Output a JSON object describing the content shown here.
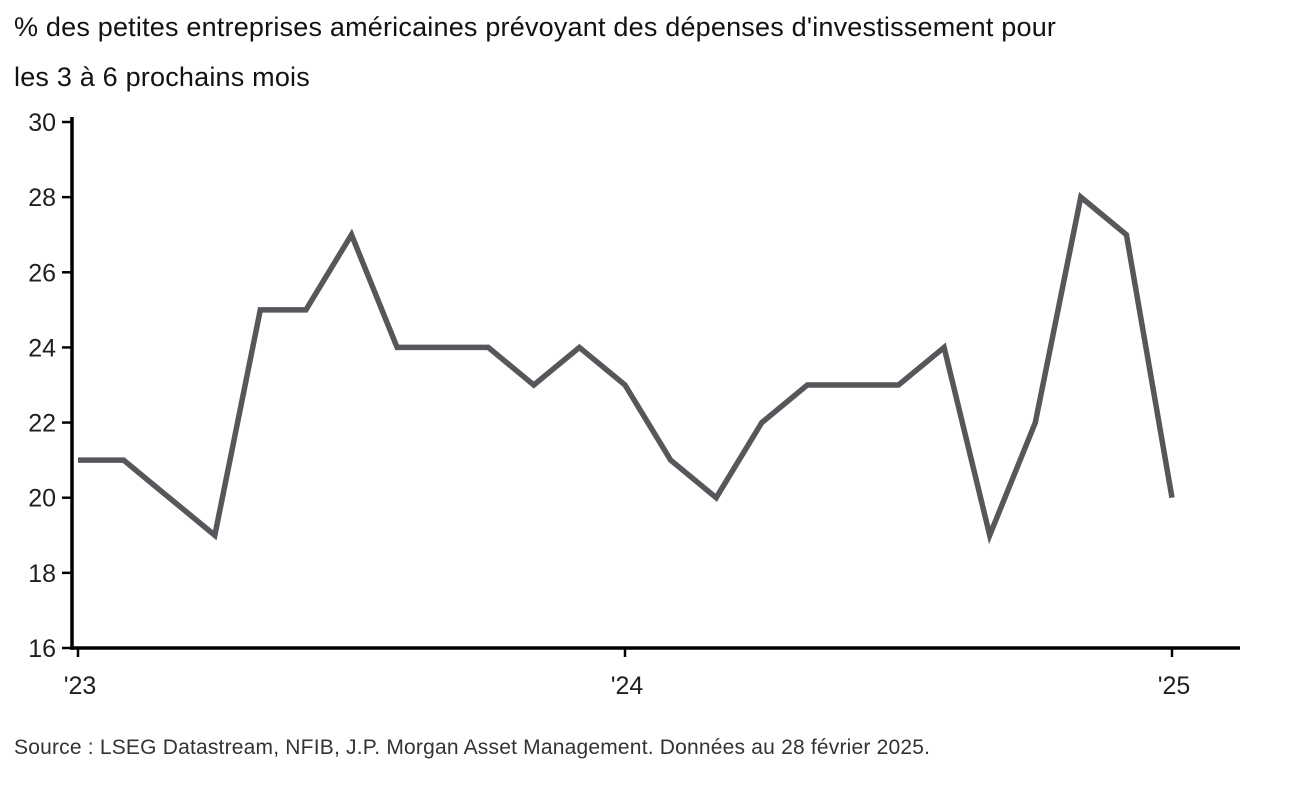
{
  "title_lines": [
    "% des petites entreprises américaines prévoyant des dépenses d'investissement pour",
    "les 3 à 6 prochains mois"
  ],
  "source": "Source : LSEG Datastream, NFIB, J.P. Morgan Asset Management. Données au 28 février 2025.",
  "chart_data": {
    "type": "line",
    "title": "% des petites entreprises américaines prévoyant des dépenses d'investissement pour les 3 à 6 prochains mois",
    "x": [
      "2023-01",
      "2023-02",
      "2023-03",
      "2023-04",
      "2023-05",
      "2023-06",
      "2023-07",
      "2023-08",
      "2023-09",
      "2023-10",
      "2023-11",
      "2023-12",
      "2024-01",
      "2024-02",
      "2024-03",
      "2024-04",
      "2024-05",
      "2024-06",
      "2024-07",
      "2024-08",
      "2024-09",
      "2024-10",
      "2024-11",
      "2024-12",
      "2025-01"
    ],
    "values": [
      21,
      21,
      20,
      19,
      25,
      25,
      27,
      24,
      24,
      24,
      23,
      24,
      23,
      21,
      20,
      22,
      23,
      23,
      23,
      24,
      19,
      22,
      28,
      27,
      20
    ],
    "ylim": [
      16,
      30
    ],
    "y_ticks": [
      16,
      18,
      20,
      22,
      24,
      26,
      28,
      30
    ],
    "x_tick_labels": [
      "'23",
      "'24",
      "'25"
    ],
    "x_tick_positions": [
      0,
      12,
      24
    ],
    "grid": false,
    "legend": "none",
    "line_color": "#55575B",
    "axis_color": "#000000",
    "tick_label_color": "#1F1F1F",
    "source": "Source : LSEG Datastream, NFIB, J.P. Morgan Asset Management. Données au 28 février 2025."
  }
}
